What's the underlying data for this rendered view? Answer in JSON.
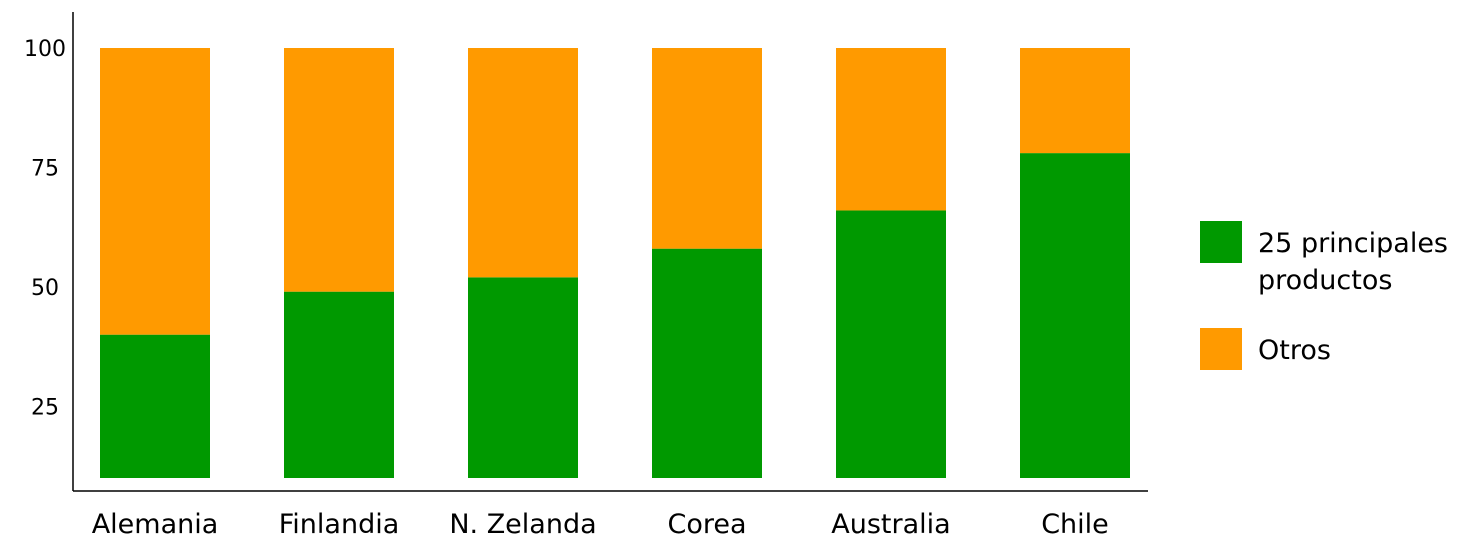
{
  "chart_data": {
    "type": "bar",
    "stacked": true,
    "categories": [
      "Alemania",
      "Finlandia",
      "N. Zelanda",
      "Corea",
      "Australia",
      "Chile"
    ],
    "series": [
      {
        "name": "25 principales productos",
        "values": [
          40,
          49,
          52,
          58,
          66,
          78
        ],
        "color": "#009900"
      },
      {
        "name": "Otros",
        "values": [
          60,
          51,
          48,
          42,
          34,
          22
        ],
        "color": "#ff9a00"
      }
    ],
    "y_ticks": [
      25,
      50,
      75,
      100
    ],
    "y_tick_labels": [
      "25",
      "50",
      "75",
      "100"
    ],
    "ylim": [
      10,
      100
    ],
    "grid": false,
    "legend": {
      "position": "right",
      "entries": [
        {
          "label_lines": [
            "25 principales",
            "productos"
          ],
          "color": "#009900"
        },
        {
          "label_lines": [
            "Otros"
          ],
          "color": "#ff9a00"
        }
      ]
    }
  }
}
